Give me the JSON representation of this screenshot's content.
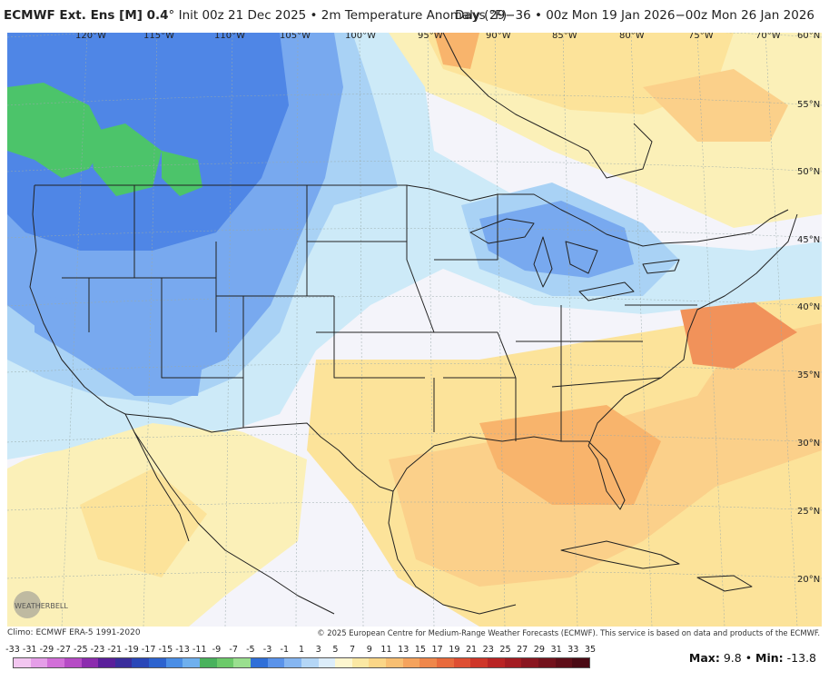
{
  "header": {
    "model": "ECMWF Ext. Ens [M] 0.4",
    "degree_mark": "°",
    "init_text": "Init 00z 21 Dec 2025 • 2m Temperature Anomaly (°F)",
    "valid_text": "Days 29−36 • 00z Mon 19 Jan 2026−00z Mon 26 Jan 2026"
  },
  "map": {
    "longitude_labels": [
      "120°W",
      "115°W",
      "110°W",
      "105°W",
      "100°W",
      "95°W",
      "90°W",
      "85°W",
      "80°W",
      "75°W",
      "70°W"
    ],
    "latitude_labels": [
      "60°N",
      "55°N",
      "50°N",
      "45°N",
      "40°N",
      "35°N",
      "30°N",
      "25°N",
      "20°N"
    ],
    "anomaly_colors": {
      "green": "#4cc46a",
      "deep_blue": "#4f86e6",
      "blue": "#78a9ef",
      "light_blue": "#a9d2f5",
      "pale_cyan": "#cdeaf8",
      "neutral": "#f4f4fa",
      "pale_yellow": "#fbf0b8",
      "yellow": "#fce39a",
      "light_orange": "#fbd08a",
      "orange": "#f8b46c",
      "deep_orange": "#f1925a"
    },
    "logo_text": "WEATHERBELL"
  },
  "footer": {
    "climo": "Climo: ECMWF ERA-5 1991-2020",
    "copyright": "© 2025 European Centre for Medium-Range Weather Forecasts (ECMWF). This service is based on data and products of the ECMWF."
  },
  "colorbar": {
    "ticks": [
      "-33",
      "-31",
      "-29",
      "-27",
      "-25",
      "-23",
      "-21",
      "-19",
      "-17",
      "-15",
      "-13",
      "-11",
      "-9",
      "-7",
      "-5",
      "-3",
      "-1",
      "1",
      "3",
      "5",
      "7",
      "9",
      "11",
      "13",
      "15",
      "17",
      "19",
      "21",
      "23",
      "25",
      "27",
      "29",
      "31",
      "33",
      "35"
    ],
    "colors": [
      "#f2c6f0",
      "#e59ee8",
      "#d26fd8",
      "#b64bc5",
      "#8c2cae",
      "#5a1f9a",
      "#3a2d9c",
      "#2a47b8",
      "#2c63cf",
      "#4a8ee6",
      "#6fb0ee",
      "#49b25d",
      "#6cca6a",
      "#9adf8f",
      "#2f6fd8",
      "#5a93ea",
      "#86b6f1",
      "#b4d6f6",
      "#dcedfa",
      "#fdf6cf",
      "#fbe8a3",
      "#fbd687",
      "#f8bf72",
      "#f5a35d",
      "#ef874b",
      "#e86a3c",
      "#de4e32",
      "#cf3629",
      "#b92424",
      "#a31c22",
      "#8a1620",
      "#73121c",
      "#5e0e18",
      "#4a0a14"
    ]
  },
  "stats": {
    "max_label": "Max:",
    "max_value": "9.8",
    "separator": "•",
    "min_label": "Min:",
    "min_value": "-13.8"
  }
}
